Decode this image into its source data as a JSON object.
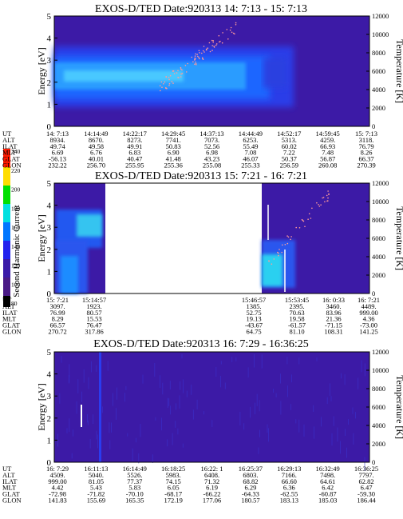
{
  "colorbar": {
    "label": "Second Harmonic Current",
    "ticks": [
      "240",
      "220",
      "200",
      "180",
      "160",
      "140",
      "120",
      "100",
      "80"
    ]
  },
  "chart_data": [
    {
      "type": "heatmap",
      "title": "EXOS-D/TED   Date:920313  14: 7:13 - 15: 7:13",
      "ylabel": "Energy [eV]",
      "y2label": "Temperature [K]",
      "ylim": [
        0,
        5
      ],
      "y2lim": [
        0,
        12000
      ],
      "yticks": [
        "0",
        "1",
        "2",
        "3",
        "4",
        "5"
      ],
      "y2ticks": [
        "0",
        "2000",
        "4000",
        "6000",
        "8000",
        "10000",
        "12000"
      ],
      "rows": [
        {
          "name": "UT",
          "values": [
            "14: 7:13",
            "14:14:49",
            "14:22:17",
            "14:29:45",
            "14:37:13",
            "14:44:49",
            "14:52:17",
            "14:59:45",
            "15: 7:13"
          ]
        },
        {
          "name": "ALT",
          "values": [
            "8934.",
            "8670.",
            "8273.",
            "7741.",
            "7073.",
            "6253.",
            "5313.",
            "4259.",
            "3118."
          ]
        },
        {
          "name": "ILAT",
          "values": [
            "49.74",
            "49.58",
            "49.91",
            "50.83",
            "52.56",
            "55.49",
            "60.02",
            "66.93",
            "76.79"
          ]
        },
        {
          "name": "MLT",
          "values": [
            "6.69",
            "6.76",
            "6.83",
            "6.90",
            "6.98",
            "7.08",
            "7.22",
            "7.48",
            "8.26"
          ]
        },
        {
          "name": "GLAT",
          "values": [
            "-56.13",
            "40.01",
            "40.47",
            "41.48",
            "43.23",
            "46.07",
            "50.37",
            "56.87",
            "66.37"
          ]
        },
        {
          "name": "GLON",
          "values": [
            "232.22",
            "256.70",
            "255.95",
            "255.36",
            "255.08",
            "255.33",
            "256.59",
            "260.08",
            "270.39"
          ]
        }
      ]
    },
    {
      "type": "heatmap",
      "title": "EXOS-D/TED   Date:920313  15: 7:21 - 16: 7:21",
      "ylabel": "Energy [eV]",
      "y2label": "Temperature [K]",
      "ylim": [
        0,
        5
      ],
      "y2lim": [
        0,
        12000
      ],
      "yticks": [
        "0",
        "1",
        "2",
        "3",
        "4",
        "5"
      ],
      "y2ticks": [
        "0",
        "2000",
        "4000",
        "6000",
        "8000",
        "10000",
        "12000"
      ],
      "rows": [
        {
          "name": "UT",
          "values": [
            "15: 7:21",
            "15:14:57",
            "15:46:57",
            "15:53:45",
            "16: 0:33",
            "16: 7:21"
          ]
        },
        {
          "name": "ALT",
          "values": [
            "3097.",
            "1923.",
            "1385.",
            "2395.",
            "3460.",
            "4489."
          ]
        },
        {
          "name": "ILAT",
          "values": [
            "76.99",
            "80.57",
            "52.75",
            "70.63",
            "83.96",
            "999.00"
          ]
        },
        {
          "name": "MLT",
          "values": [
            "8.29",
            "15.53",
            "19.13",
            "19.58",
            "21.36",
            "4.36"
          ]
        },
        {
          "name": "GLAT",
          "values": [
            "66.57",
            "76.47",
            "-43.67",
            "-61.57",
            "-71.15",
            "-73.00"
          ]
        },
        {
          "name": "GLON",
          "values": [
            "270.72",
            "317.86",
            "64.75",
            "81.10",
            "108.31",
            "141.25"
          ]
        }
      ]
    },
    {
      "type": "heatmap",
      "title": "EXOS-D/TED   Date:920313  16: 7:29 - 16:36:25",
      "ylabel": "Energy [eV]",
      "y2label": "Temperature [K]",
      "ylim": [
        0,
        5
      ],
      "y2lim": [
        0,
        12000
      ],
      "yticks": [
        "0",
        "1",
        "2",
        "3",
        "4",
        "5"
      ],
      "y2ticks": [
        "0",
        "2000",
        "4000",
        "6000",
        "8000",
        "10000",
        "12000"
      ],
      "rows": [
        {
          "name": "UT",
          "values": [
            "16: 7:29",
            "16:11:13",
            "16:14:49",
            "16:18:25",
            "16:22: 1",
            "16:25:37",
            "16:29:13",
            "16:32:49",
            "16:36:25"
          ]
        },
        {
          "name": "ALT",
          "values": [
            "4509.",
            "5040.",
            "5526.",
            "5983.",
            "6408.",
            "6803.",
            "7166.",
            "7498.",
            "7797."
          ]
        },
        {
          "name": "ILAT",
          "values": [
            "999.00",
            "81.05",
            "77.37",
            "74.15",
            "71.32",
            "68.82",
            "66.60",
            "64.61",
            "62.82"
          ]
        },
        {
          "name": "MLT",
          "values": [
            "4.42",
            "5.43",
            "5.83",
            "6.05",
            "6.19",
            "6.29",
            "6.36",
            "6.42",
            "6.47"
          ]
        },
        {
          "name": "GLAT",
          "values": [
            "-72.98",
            "-71.82",
            "-70.10",
            "-68.17",
            "-66.22",
            "-64.33",
            "-62.55",
            "-60.87",
            "-59.30"
          ]
        },
        {
          "name": "GLON",
          "values": [
            "141.83",
            "155.69",
            "165.35",
            "172.19",
            "177.06",
            "180.57",
            "183.13",
            "185.03",
            "186.44"
          ]
        }
      ]
    }
  ]
}
